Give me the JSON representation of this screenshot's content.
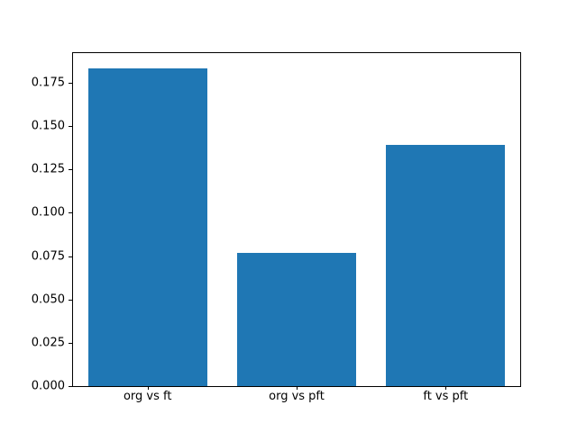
{
  "chart_data": {
    "type": "bar",
    "title": "",
    "xlabel": "",
    "ylabel": "",
    "categories": [
      "org vs ft",
      "org vs pft",
      "ft vs pft"
    ],
    "values": [
      0.183,
      0.077,
      0.139
    ],
    "bar_color": "#1f77b4",
    "ylim": [
      0,
      0.192
    ],
    "yticks": [
      0,
      0.025,
      0.05,
      0.075,
      0.1,
      0.125,
      0.15,
      0.175
    ],
    "ytick_labels": [
      "0.000",
      "0.025",
      "0.050",
      "0.075",
      "0.100",
      "0.125",
      "0.150",
      "0.175"
    ],
    "grid": false,
    "legend_position": "none",
    "bar_width_fraction": 0.8,
    "background_color": "#ffffff",
    "spine_color": "#000000"
  }
}
